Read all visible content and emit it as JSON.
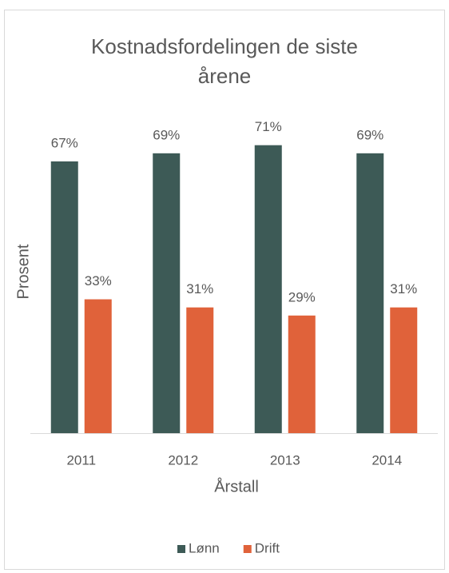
{
  "chart_data": {
    "type": "bar",
    "title": "Kostnadsfordelingen de siste årene",
    "x_label": "Årstall",
    "y_label": "Prosent",
    "categories": [
      "2011",
      "2012",
      "2013",
      "2014"
    ],
    "series": [
      {
        "name": "Lønn",
        "color": "#3d5a56",
        "values": [
          67,
          69,
          71,
          69
        ],
        "value_labels": [
          "67%",
          "69%",
          "71%",
          "69%"
        ]
      },
      {
        "name": "Drift",
        "color": "#e0623a",
        "values": [
          33,
          31,
          29,
          31
        ],
        "value_labels": [
          "33%",
          "31%",
          "29%",
          "31%"
        ]
      }
    ],
    "ylim": [
      0,
      80
    ],
    "legend": "bottom"
  }
}
